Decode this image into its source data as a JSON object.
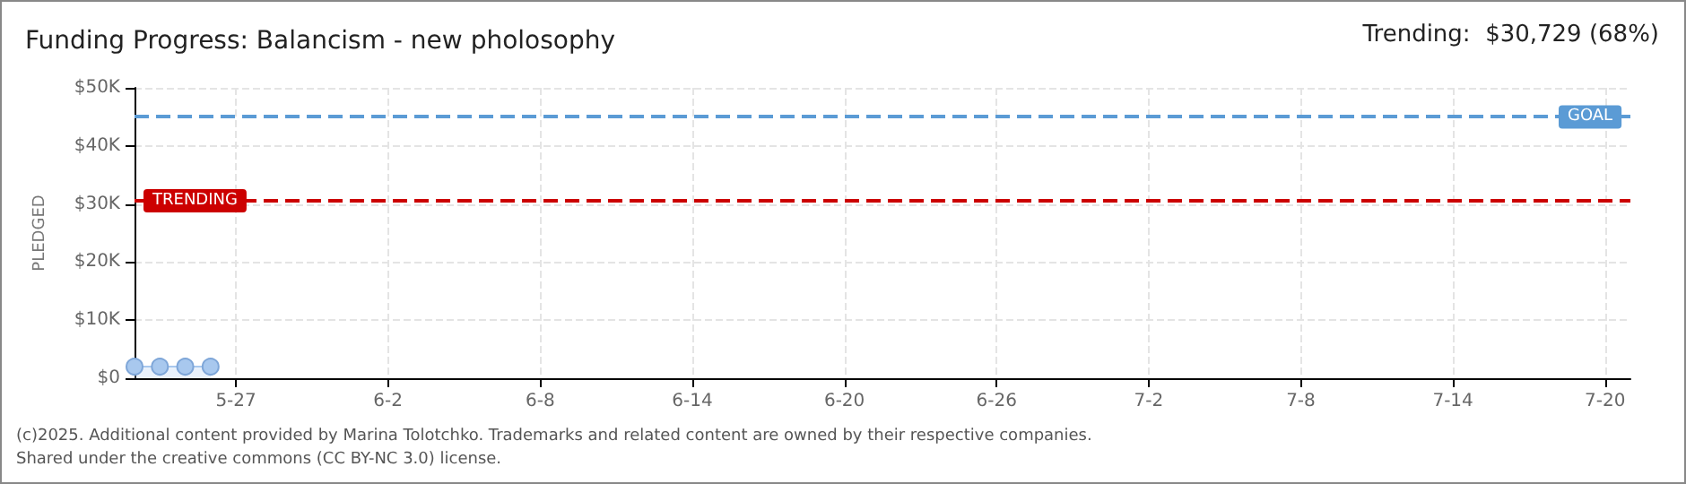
{
  "chart_data": {
    "type": "area",
    "title": "Funding Progress: Balancism - new pholosophy",
    "ylabel": "PLEDGED",
    "x": [
      "--05-23",
      "--05-24",
      "--05-25",
      "--05-26"
    ],
    "series": [
      {
        "color": "#a8c8ee",
        "values": [
          2000,
          2000,
          2000,
          2000
        ]
      }
    ],
    "marker": "circle",
    "xlim": [
      "--05-23",
      "--07-21"
    ],
    "xticks": [
      {
        "value": "--05-27",
        "label": "5-27"
      },
      {
        "value": "--06-02",
        "label": "6-2"
      },
      {
        "value": "--06-08",
        "label": "6-8"
      },
      {
        "value": "--06-14",
        "label": "6-14"
      },
      {
        "value": "--06-20",
        "label": "6-20"
      },
      {
        "value": "--06-26",
        "label": "6-26"
      },
      {
        "value": "--07-02",
        "label": "7-2"
      },
      {
        "value": "--07-08",
        "label": "7-8"
      },
      {
        "value": "--07-14",
        "label": "7-14"
      },
      {
        "value": "--07-20",
        "label": "7-20"
      }
    ],
    "ylim": [
      0,
      50000
    ],
    "yticks": [
      {
        "value": 0,
        "label": "$0"
      },
      {
        "value": 10000,
        "label": "$10K"
      },
      {
        "value": 20000,
        "label": "$20K"
      },
      {
        "value": 30000,
        "label": "$30K"
      },
      {
        "value": 40000,
        "label": "$40K"
      },
      {
        "value": 50000,
        "label": "$50K"
      }
    ],
    "grid": true,
    "ref_lines": [
      {
        "axis": "y",
        "value": 45000,
        "label": "GOAL",
        "color": "#5b9bd5",
        "line_style": "dashed"
      },
      {
        "axis": "y",
        "value": 30729,
        "label": "TRENDING",
        "color": "#cc0000",
        "line_style": "dashed"
      }
    ],
    "annotations": [
      "Trending:  $30,729 (68%)",
      "(c)2025. Additional content provided by Marina Tolotchko. Trademarks and related content are owned by their respective companies.",
      "Shared under the creative commons (CC BY-NC 3.0) license."
    ]
  }
}
